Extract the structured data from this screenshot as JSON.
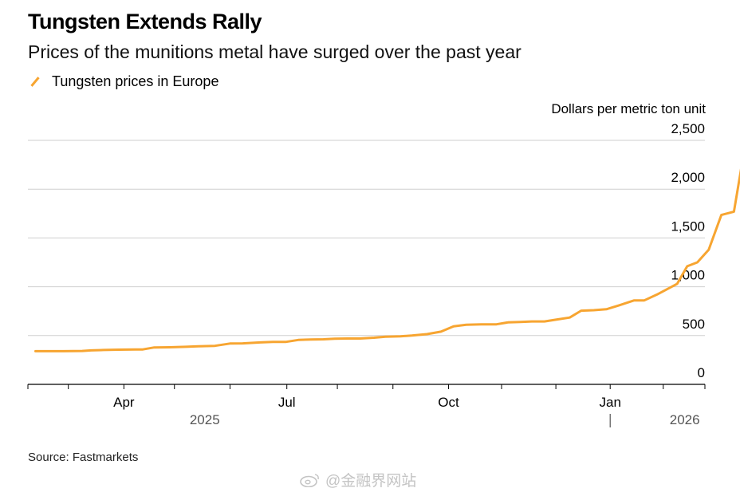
{
  "title": "Tungsten Extends Rally",
  "subtitle": "Prices of the munitions metal have surged over the past year",
  "legend": {
    "label": "Tungsten prices in Europe",
    "color": "#F7A531",
    "icon": "line-swatch-icon"
  },
  "source": "Source: Fastmarkets",
  "watermark": "@金融界网站",
  "chart_data": {
    "type": "line",
    "title": "Tungsten Extends Rally",
    "ylabel": "Dollars per metric ton unit",
    "xlabel": "",
    "ylim": [
      0,
      2500
    ],
    "yticks": [
      {
        "value": 0,
        "label": "0"
      },
      {
        "value": 500,
        "label": "500"
      },
      {
        "value": 1000,
        "label": "1,000"
      },
      {
        "value": 1500,
        "label": "1,500"
      },
      {
        "value": 2000,
        "label": "2,000"
      },
      {
        "value": 2500,
        "label": "2,500"
      }
    ],
    "xlim": [
      0,
      53.6
    ],
    "x_unit": "weeks since start of series",
    "xticks": [
      {
        "value": 7.6,
        "label": "Apr"
      },
      {
        "value": 20.5,
        "label": "Jul"
      },
      {
        "value": 33.3,
        "label": "Oct"
      },
      {
        "value": 46.1,
        "label": "Jan"
      }
    ],
    "minor_ticks": [
      0,
      3.2,
      7.6,
      11.6,
      16.0,
      20.5,
      24.5,
      28.9,
      33.3,
      37.5,
      41.8,
      46.1,
      50.3,
      53.6
    ],
    "year_labels": [
      {
        "value": 14.0,
        "label": "2025"
      },
      {
        "value": 52.0,
        "label": "2026"
      }
    ],
    "year_divider": 46.1,
    "series": [
      {
        "name": "Tungsten prices in Europe",
        "color": "#F7A531",
        "x": [
          0.6,
          1.8,
          2.8,
          4.3,
          5.0,
          6.0,
          7.2,
          8.5,
          9.1,
          10.0,
          11.2,
          12.5,
          13.5,
          14.8,
          16.0,
          17.0,
          18.4,
          19.4,
          20.4,
          21.4,
          22.4,
          23.4,
          24.3,
          25.3,
          26.3,
          27.4,
          28.3,
          29.5,
          30.4,
          31.6,
          32.7,
          33.7,
          34.7,
          35.9,
          37.1,
          38.0,
          39.0,
          39.9,
          40.9,
          41.9,
          42.9,
          43.8,
          44.8,
          45.8,
          46.8,
          48.0,
          48.8,
          49.8,
          50.6,
          51.4,
          52.2,
          53.0,
          53.9,
          54.9,
          55.9,
          56.5
        ],
        "values": [
          340,
          340,
          340,
          342,
          348,
          352,
          355,
          358,
          358,
          378,
          380,
          385,
          390,
          395,
          418,
          420,
          430,
          435,
          435,
          455,
          460,
          462,
          468,
          470,
          470,
          478,
          488,
          493,
          500,
          515,
          540,
          595,
          610,
          615,
          615,
          635,
          640,
          645,
          645,
          665,
          685,
          755,
          760,
          770,
          810,
          860,
          860,
          920,
          975,
          1030,
          1210,
          1250,
          1380,
          1735,
          1770,
          2230
        ]
      }
    ]
  }
}
